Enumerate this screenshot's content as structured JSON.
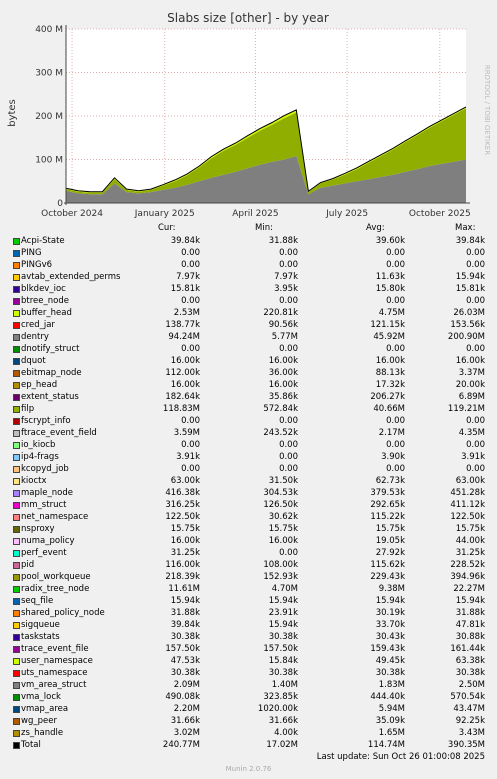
{
  "chart_data": {
    "type": "area",
    "title": "Slabs size [other] - by year",
    "ylabel": "bytes",
    "watermark": "RRDTOOL / TOBI OETIKER",
    "yticks": [
      "0",
      "100 M",
      "200 M",
      "300 M",
      "400 M"
    ],
    "ylim": [
      0,
      400
    ],
    "y_units": "M bytes",
    "xticks": [
      "October 2024",
      "January 2025",
      "April 2025",
      "July 2025",
      "October 2025"
    ],
    "x_range": [
      "2024-09-25",
      "2025-10-27"
    ],
    "grid": true,
    "series_note": "Stacked areas; values in M bytes sampled along the time axis",
    "series": [
      {
        "name": "dentry",
        "color": "#7f7f7f",
        "values": [
          28,
          22,
          20,
          20,
          45,
          25,
          22,
          25,
          30,
          35,
          42,
          50,
          58,
          65,
          72,
          80,
          88,
          95,
          100,
          108,
          20,
          35,
          40,
          45,
          50,
          55,
          60,
          65,
          72,
          78,
          85,
          90,
          95,
          100
        ]
      },
      {
        "name": "filp",
        "color": "#8fae00",
        "values": [
          4,
          4,
          4,
          4,
          10,
          5,
          4,
          5,
          10,
          15,
          22,
          32,
          45,
          55,
          62,
          70,
          78,
          85,
          95,
          100,
          5,
          10,
          14,
          20,
          28,
          38,
          48,
          58,
          68,
          78,
          88,
          98,
          108,
          118
        ]
      },
      {
        "name": "buffer_head",
        "color": "#cdf500",
        "values": [
          2,
          2,
          2,
          2,
          3,
          2,
          2,
          2,
          2,
          3,
          3,
          3,
          4,
          4,
          4,
          5,
          5,
          5,
          6,
          6,
          2,
          2,
          2,
          3,
          3,
          3,
          3,
          3,
          3,
          3,
          3,
          3,
          3,
          3
        ]
      }
    ]
  },
  "legend": {
    "headers": [
      "Cur:",
      "Min:",
      "Avg:",
      "Max:"
    ],
    "rows": [
      {
        "name": "Acpi-State",
        "color": "#00cc00",
        "cur": "39.84k",
        "min": "31.88k",
        "avg": "39.60k",
        "max": "39.84k"
      },
      {
        "name": "PING",
        "color": "#0066b3",
        "cur": "0.00",
        "min": "0.00",
        "avg": "0.00",
        "max": "0.00"
      },
      {
        "name": "PINGv6",
        "color": "#ff8000",
        "cur": "0.00",
        "min": "0.00",
        "avg": "0.00",
        "max": "0.00"
      },
      {
        "name": "avtab_extended_perms",
        "color": "#ffcc00",
        "cur": "7.97k",
        "min": "7.97k",
        "avg": "11.63k",
        "max": "15.94k"
      },
      {
        "name": "blkdev_ioc",
        "color": "#330099",
        "cur": "15.81k",
        "min": "3.95k",
        "avg": "15.80k",
        "max": "15.81k"
      },
      {
        "name": "btree_node",
        "color": "#990099",
        "cur": "0.00",
        "min": "0.00",
        "avg": "0.00",
        "max": "0.00"
      },
      {
        "name": "buffer_head",
        "color": "#ccff00",
        "cur": "2.53M",
        "min": "220.81k",
        "avg": "4.75M",
        "max": "26.03M"
      },
      {
        "name": "cred_jar",
        "color": "#ff0000",
        "cur": "138.77k",
        "min": "90.56k",
        "avg": "121.15k",
        "max": "153.56k"
      },
      {
        "name": "dentry",
        "color": "#808080",
        "cur": "94.24M",
        "min": "5.77M",
        "avg": "45.92M",
        "max": "200.90M"
      },
      {
        "name": "dnotify_struct",
        "color": "#008f00",
        "cur": "0.00",
        "min": "0.00",
        "avg": "0.00",
        "max": "0.00"
      },
      {
        "name": "dquot",
        "color": "#00487d",
        "cur": "16.00k",
        "min": "16.00k",
        "avg": "16.00k",
        "max": "16.00k"
      },
      {
        "name": "ebitmap_node",
        "color": "#b35a00",
        "cur": "112.00k",
        "min": "36.00k",
        "avg": "88.13k",
        "max": "3.37M"
      },
      {
        "name": "ep_head",
        "color": "#b38f00",
        "cur": "16.00k",
        "min": "16.00k",
        "avg": "17.32k",
        "max": "20.00k"
      },
      {
        "name": "extent_status",
        "color": "#6b006b",
        "cur": "182.64k",
        "min": "35.86k",
        "avg": "206.27k",
        "max": "6.89M"
      },
      {
        "name": "filp",
        "color": "#8fb300",
        "cur": "118.83M",
        "min": "572.84k",
        "avg": "40.66M",
        "max": "119.21M"
      },
      {
        "name": "fscrypt_info",
        "color": "#b30000",
        "cur": "0.00",
        "min": "0.00",
        "avg": "0.00",
        "max": "0.00"
      },
      {
        "name": "ftrace_event_field",
        "color": "#bebebe",
        "cur": "3.59M",
        "min": "243.52k",
        "avg": "2.17M",
        "max": "4.35M"
      },
      {
        "name": "io_kiocb",
        "color": "#80ff80",
        "cur": "0.00",
        "min": "0.00",
        "avg": "0.00",
        "max": "0.00"
      },
      {
        "name": "ip4-frags",
        "color": "#80c9ff",
        "cur": "3.91k",
        "min": "0.00",
        "avg": "3.90k",
        "max": "3.91k"
      },
      {
        "name": "kcopyd_job",
        "color": "#ffc080",
        "cur": "0.00",
        "min": "0.00",
        "avg": "0.00",
        "max": "0.00"
      },
      {
        "name": "kioctx",
        "color": "#ffe680",
        "cur": "63.00k",
        "min": "31.50k",
        "avg": "62.73k",
        "max": "63.00k"
      },
      {
        "name": "maple_node",
        "color": "#aa80ff",
        "cur": "416.38k",
        "min": "304.53k",
        "avg": "379.53k",
        "max": "451.28k"
      },
      {
        "name": "mm_struct",
        "color": "#ee00cc",
        "cur": "316.25k",
        "min": "126.50k",
        "avg": "292.65k",
        "max": "411.12k"
      },
      {
        "name": "net_namespace",
        "color": "#ff8080",
        "cur": "122.50k",
        "min": "30.62k",
        "avg": "115.22k",
        "max": "122.50k"
      },
      {
        "name": "nsproxy",
        "color": "#666600",
        "cur": "15.75k",
        "min": "15.75k",
        "avg": "15.75k",
        "max": "15.75k"
      },
      {
        "name": "numa_policy",
        "color": "#ffbfff",
        "cur": "16.00k",
        "min": "16.00k",
        "avg": "19.05k",
        "max": "44.00k"
      },
      {
        "name": "perf_event",
        "color": "#00ffcc",
        "cur": "31.25k",
        "min": "0.00",
        "avg": "27.92k",
        "max": "31.25k"
      },
      {
        "name": "pid",
        "color": "#cc6699",
        "cur": "116.00k",
        "min": "108.00k",
        "avg": "115.62k",
        "max": "228.52k"
      },
      {
        "name": "pool_workqueue",
        "color": "#999900",
        "cur": "218.39k",
        "min": "152.93k",
        "avg": "229.43k",
        "max": "394.96k"
      },
      {
        "name": "radix_tree_node",
        "color": "#00cc00",
        "cur": "11.61M",
        "min": "4.70M",
        "avg": "9.38M",
        "max": "22.27M"
      },
      {
        "name": "seq_file",
        "color": "#0066b3",
        "cur": "15.94k",
        "min": "15.94k",
        "avg": "15.94k",
        "max": "15.94k"
      },
      {
        "name": "shared_policy_node",
        "color": "#ff8000",
        "cur": "31.88k",
        "min": "23.91k",
        "avg": "30.19k",
        "max": "31.88k"
      },
      {
        "name": "sigqueue",
        "color": "#ffcc00",
        "cur": "39.84k",
        "min": "15.94k",
        "avg": "33.70k",
        "max": "47.81k"
      },
      {
        "name": "taskstats",
        "color": "#330099",
        "cur": "30.38k",
        "min": "30.38k",
        "avg": "30.43k",
        "max": "30.88k"
      },
      {
        "name": "trace_event_file",
        "color": "#990099",
        "cur": "157.50k",
        "min": "157.50k",
        "avg": "159.43k",
        "max": "161.44k"
      },
      {
        "name": "user_namespace",
        "color": "#ccff00",
        "cur": "47.53k",
        "min": "15.84k",
        "avg": "49.45k",
        "max": "63.38k"
      },
      {
        "name": "uts_namespace",
        "color": "#ff0000",
        "cur": "30.38k",
        "min": "30.38k",
        "avg": "30.38k",
        "max": "30.38k"
      },
      {
        "name": "vm_area_struct",
        "color": "#808080",
        "cur": "2.09M",
        "min": "1.40M",
        "avg": "1.83M",
        "max": "2.50M"
      },
      {
        "name": "vma_lock",
        "color": "#008f00",
        "cur": "490.08k",
        "min": "323.85k",
        "avg": "444.40k",
        "max": "570.54k"
      },
      {
        "name": "vmap_area",
        "color": "#00487d",
        "cur": "2.20M",
        "min": "1020.00k",
        "avg": "5.94M",
        "max": "43.47M"
      },
      {
        "name": "wg_peer",
        "color": "#b35a00",
        "cur": "31.66k",
        "min": "31.66k",
        "avg": "35.09k",
        "max": "92.25k"
      },
      {
        "name": "zs_handle",
        "color": "#b38f00",
        "cur": "3.02M",
        "min": "4.00k",
        "avg": "1.65M",
        "max": "3.43M"
      },
      {
        "name": "Total",
        "color": "#000000",
        "cur": "240.77M",
        "min": "17.02M",
        "avg": "114.74M",
        "max": "390.35M"
      }
    ]
  },
  "footer": {
    "last_update": "Last update: Sun Oct 26 01:00:08 2025",
    "generator": "Munin 2.0.76"
  }
}
